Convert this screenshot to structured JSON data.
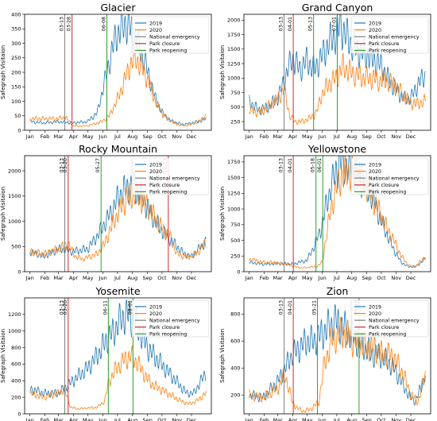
{
  "colors": {
    "y2019": "#1f77b4",
    "y2020": "#ff7f0e",
    "emergency": "#7f7f7f",
    "closure": "#d62728",
    "reopening": "#2ca02c"
  },
  "legend": [
    "2019",
    "2020",
    "National emergency",
    "Park closure",
    "Park reopening"
  ],
  "ylabel": "Safegraph Visitaion",
  "months": [
    "Jan",
    "Feb",
    "Mar",
    "Apr",
    "May",
    "Jun",
    "Jul",
    "Aug",
    "Sep",
    "Oct",
    "Nov",
    "Dec"
  ],
  "chart_data": [
    {
      "type": "line",
      "title": "Glacier",
      "ylabel": "Safegraph Visitaion",
      "ylim": [
        0,
        400
      ],
      "yticks": [
        0,
        50,
        100,
        150,
        200,
        250,
        300,
        350,
        400
      ],
      "x_unit": "day of year",
      "series": [
        {
          "name": "2019",
          "x": [
            1,
            30,
            60,
            90,
            120,
            140,
            150,
            160,
            170,
            180,
            190,
            200,
            210,
            220,
            230,
            240,
            250,
            260,
            275,
            290,
            305,
            320,
            335,
            350,
            365
          ],
          "y": [
            30,
            25,
            30,
            25,
            30,
            60,
            130,
            200,
            270,
            330,
            350,
            370,
            345,
            320,
            270,
            230,
            170,
            110,
            60,
            35,
            25,
            20,
            25,
            30,
            40
          ]
        },
        {
          "name": "2020",
          "x": [
            1,
            30,
            60,
            75,
            90,
            120,
            150,
            165,
            180,
            190,
            200,
            210,
            220,
            230,
            240,
            250,
            260,
            275,
            290,
            305,
            320,
            335,
            350,
            365
          ],
          "y": [
            40,
            40,
            40,
            45,
            15,
            15,
            30,
            50,
            100,
            140,
            190,
            230,
            250,
            220,
            190,
            150,
            100,
            55,
            35,
            20,
            15,
            20,
            30,
            50
          ]
        }
      ],
      "events": [
        {
          "kind": "emergency",
          "label": "03-13",
          "day": 73
        },
        {
          "kind": "closure",
          "label": "03-28",
          "day": 88
        },
        {
          "kind": "reopening",
          "label": "06-08",
          "day": 160
        }
      ]
    },
    {
      "type": "line",
      "title": "Grand Canyon",
      "ylabel": "Safegraph Visitaion",
      "ylim": [
        100,
        2100
      ],
      "yticks": [
        250,
        500,
        750,
        1000,
        1250,
        1500,
        1750,
        2000
      ],
      "x_unit": "day of year",
      "series": [
        {
          "name": "2019",
          "x": [
            1,
            20,
            40,
            60,
            75,
            90,
            105,
            120,
            135,
            150,
            165,
            180,
            190,
            200,
            215,
            230,
            245,
            260,
            275,
            290,
            305,
            320,
            335,
            350,
            365
          ],
          "y": [
            600,
            450,
            500,
            650,
            1000,
            1350,
            1150,
            1300,
            1150,
            1350,
            1600,
            1750,
            1900,
            1750,
            1550,
            1450,
            1400,
            1300,
            1200,
            950,
            800,
            650,
            650,
            900,
            1050
          ]
        },
        {
          "name": "2020",
          "x": [
            1,
            20,
            40,
            60,
            73,
            85,
            95,
            110,
            125,
            140,
            150,
            165,
            180,
            195,
            210,
            225,
            240,
            255,
            270,
            285,
            300,
            315,
            330,
            345,
            365
          ],
          "y": [
            450,
            400,
            500,
            650,
            800,
            350,
            250,
            250,
            300,
            400,
            700,
            900,
            1000,
            1200,
            1100,
            1050,
            1000,
            1000,
            950,
            950,
            900,
            750,
            600,
            550,
            600
          ]
        }
      ],
      "events": [
        {
          "kind": "emergency",
          "label": "03-13",
          "day": 73
        },
        {
          "kind": "closure",
          "label": "04-01",
          "day": 92
        },
        {
          "kind": "reopening",
          "label": "05-13",
          "day": 134
        },
        {
          "kind": "reopening",
          "label": "07-01",
          "day": 183
        }
      ]
    },
    {
      "type": "line",
      "title": "Rocky Mountain",
      "ylabel": "Safegraph Visitaion",
      "ylim": [
        0,
        2300
      ],
      "yticks": [
        0,
        500,
        1000,
        1500,
        2000
      ],
      "x_unit": "day of year",
      "series": [
        {
          "name": "2019",
          "x": [
            1,
            30,
            60,
            90,
            120,
            140,
            155,
            170,
            185,
            200,
            215,
            230,
            245,
            260,
            275,
            290,
            305,
            320,
            335,
            350,
            365
          ],
          "y": [
            400,
            300,
            450,
            400,
            450,
            700,
            950,
            1200,
            1500,
            1650,
            1700,
            1500,
            1250,
            1000,
            800,
            650,
            500,
            350,
            300,
            450,
            600
          ]
        },
        {
          "name": "2020",
          "x": [
            1,
            30,
            60,
            80,
            95,
            110,
            125,
            140,
            155,
            170,
            185,
            200,
            215,
            230,
            245,
            260,
            275,
            290,
            305,
            320,
            335,
            350,
            365
          ],
          "y": [
            400,
            350,
            450,
            550,
            300,
            250,
            300,
            350,
            550,
            900,
            1200,
            1450,
            1550,
            1450,
            1300,
            1050,
            850,
            700,
            350,
            300,
            300,
            400,
            600
          ]
        }
      ],
      "events": [
        {
          "kind": "emergency",
          "label": "03-13",
          "day": 73
        },
        {
          "kind": "closure",
          "label": "03-20",
          "day": 80
        },
        {
          "kind": "reopening",
          "label": "05-27",
          "day": 148
        },
        {
          "kind": "closure",
          "label": "10-13",
          "day": 287
        }
      ]
    },
    {
      "type": "line",
      "title": "Yellowstone",
      "ylabel": "Safegraph Visitaion",
      "ylim": [
        0,
        1850
      ],
      "yticks": [
        0,
        250,
        500,
        750,
        1000,
        1250,
        1500,
        1750
      ],
      "x_unit": "day of year",
      "series": [
        {
          "name": "2019",
          "x": [
            1,
            30,
            60,
            90,
            120,
            135,
            150,
            160,
            170,
            180,
            190,
            200,
            210,
            225,
            240,
            255,
            270,
            285,
            300,
            315,
            330,
            345,
            365
          ],
          "y": [
            150,
            120,
            130,
            120,
            180,
            400,
            700,
            1050,
            1350,
            1600,
            1750,
            1700,
            1650,
            1550,
            1400,
            1200,
            900,
            600,
            350,
            150,
            80,
            80,
            200
          ]
        },
        {
          "name": "2020",
          "x": [
            1,
            30,
            60,
            80,
            95,
            110,
            125,
            140,
            152,
            160,
            170,
            180,
            190,
            200,
            210,
            225,
            240,
            255,
            270,
            285,
            300,
            315,
            330,
            345,
            365
          ],
          "y": [
            200,
            150,
            140,
            120,
            80,
            60,
            70,
            80,
            150,
            550,
            1000,
            1300,
            1500,
            1550,
            1600,
            1550,
            1400,
            1200,
            950,
            700,
            500,
            250,
            100,
            80,
            250
          ]
        }
      ],
      "events": [
        {
          "kind": "emergency",
          "label": "03-13",
          "day": 73
        },
        {
          "kind": "closure",
          "label": "04-01",
          "day": 92
        },
        {
          "kind": "reopening",
          "label": "05-18",
          "day": 139
        },
        {
          "kind": "reopening",
          "label": "06-01",
          "day": 153
        }
      ]
    },
    {
      "type": "line",
      "title": "Yosemite",
      "ylabel": "Safegraph Visitaion",
      "ylim": [
        0,
        1400
      ],
      "yticks": [
        0,
        200,
        400,
        600,
        800,
        1000,
        1200
      ],
      "x_unit": "day of year",
      "series": [
        {
          "name": "2019",
          "x": [
            1,
            30,
            60,
            80,
            100,
            120,
            140,
            160,
            175,
            190,
            205,
            220,
            235,
            250,
            265,
            280,
            295,
            310,
            325,
            340,
            355,
            365
          ],
          "y": [
            300,
            250,
            250,
            350,
            450,
            550,
            700,
            900,
            1000,
            1150,
            1200,
            1100,
            900,
            750,
            650,
            550,
            450,
            350,
            250,
            250,
            400,
            500
          ]
        },
        {
          "name": "2020",
          "x": [
            1,
            30,
            60,
            72,
            85,
            100,
            120,
            140,
            155,
            165,
            180,
            195,
            210,
            225,
            240,
            255,
            270,
            285,
            300,
            315,
            330,
            345,
            365
          ],
          "y": [
            250,
            200,
            250,
            300,
            80,
            60,
            70,
            80,
            150,
            400,
            550,
            650,
            700,
            600,
            450,
            350,
            300,
            250,
            200,
            150,
            120,
            150,
            250
          ]
        }
      ],
      "events": [
        {
          "kind": "emergency",
          "label": "03-13",
          "day": 73
        },
        {
          "kind": "closure",
          "label": "03-20",
          "day": 80
        },
        {
          "kind": "reopening",
          "label": "06-11",
          "day": 163
        },
        {
          "kind": "reopening",
          "label": "08-01",
          "day": 214
        }
      ]
    },
    {
      "type": "line",
      "title": "Zion",
      "ylabel": "Safegraph Visitaion",
      "ylim": [
        60,
        920
      ],
      "yticks": [
        200,
        400,
        600,
        800
      ],
      "x_unit": "day of year",
      "series": [
        {
          "name": "2019",
          "x": [
            1,
            30,
            60,
            75,
            90,
            105,
            120,
            135,
            150,
            165,
            180,
            195,
            210,
            225,
            240,
            255,
            270,
            285,
            300,
            315,
            330,
            345,
            365
          ],
          "y": [
            200,
            180,
            300,
            400,
            500,
            550,
            600,
            600,
            650,
            700,
            750,
            700,
            650,
            600,
            550,
            500,
            500,
            450,
            400,
            300,
            200,
            150,
            350
          ]
        },
        {
          "name": "2020",
          "x": [
            1,
            30,
            60,
            75,
            90,
            100,
            115,
            130,
            145,
            155,
            170,
            185,
            200,
            215,
            230,
            245,
            260,
            275,
            290,
            305,
            320,
            335,
            350,
            365
          ],
          "y": [
            200,
            180,
            250,
            350,
            150,
            100,
            80,
            100,
            150,
            400,
            600,
            650,
            650,
            600,
            580,
            550,
            550,
            500,
            500,
            450,
            350,
            200,
            150,
            350
          ]
        }
      ],
      "events": [
        {
          "kind": "emergency",
          "label": "03-13",
          "day": 73
        },
        {
          "kind": "closure",
          "label": "04-01",
          "day": 92
        },
        {
          "kind": "reopening",
          "label": "05-21",
          "day": 142
        },
        {
          "kind": "reopening",
          "label": "08-15",
          "day": 228
        }
      ]
    }
  ]
}
